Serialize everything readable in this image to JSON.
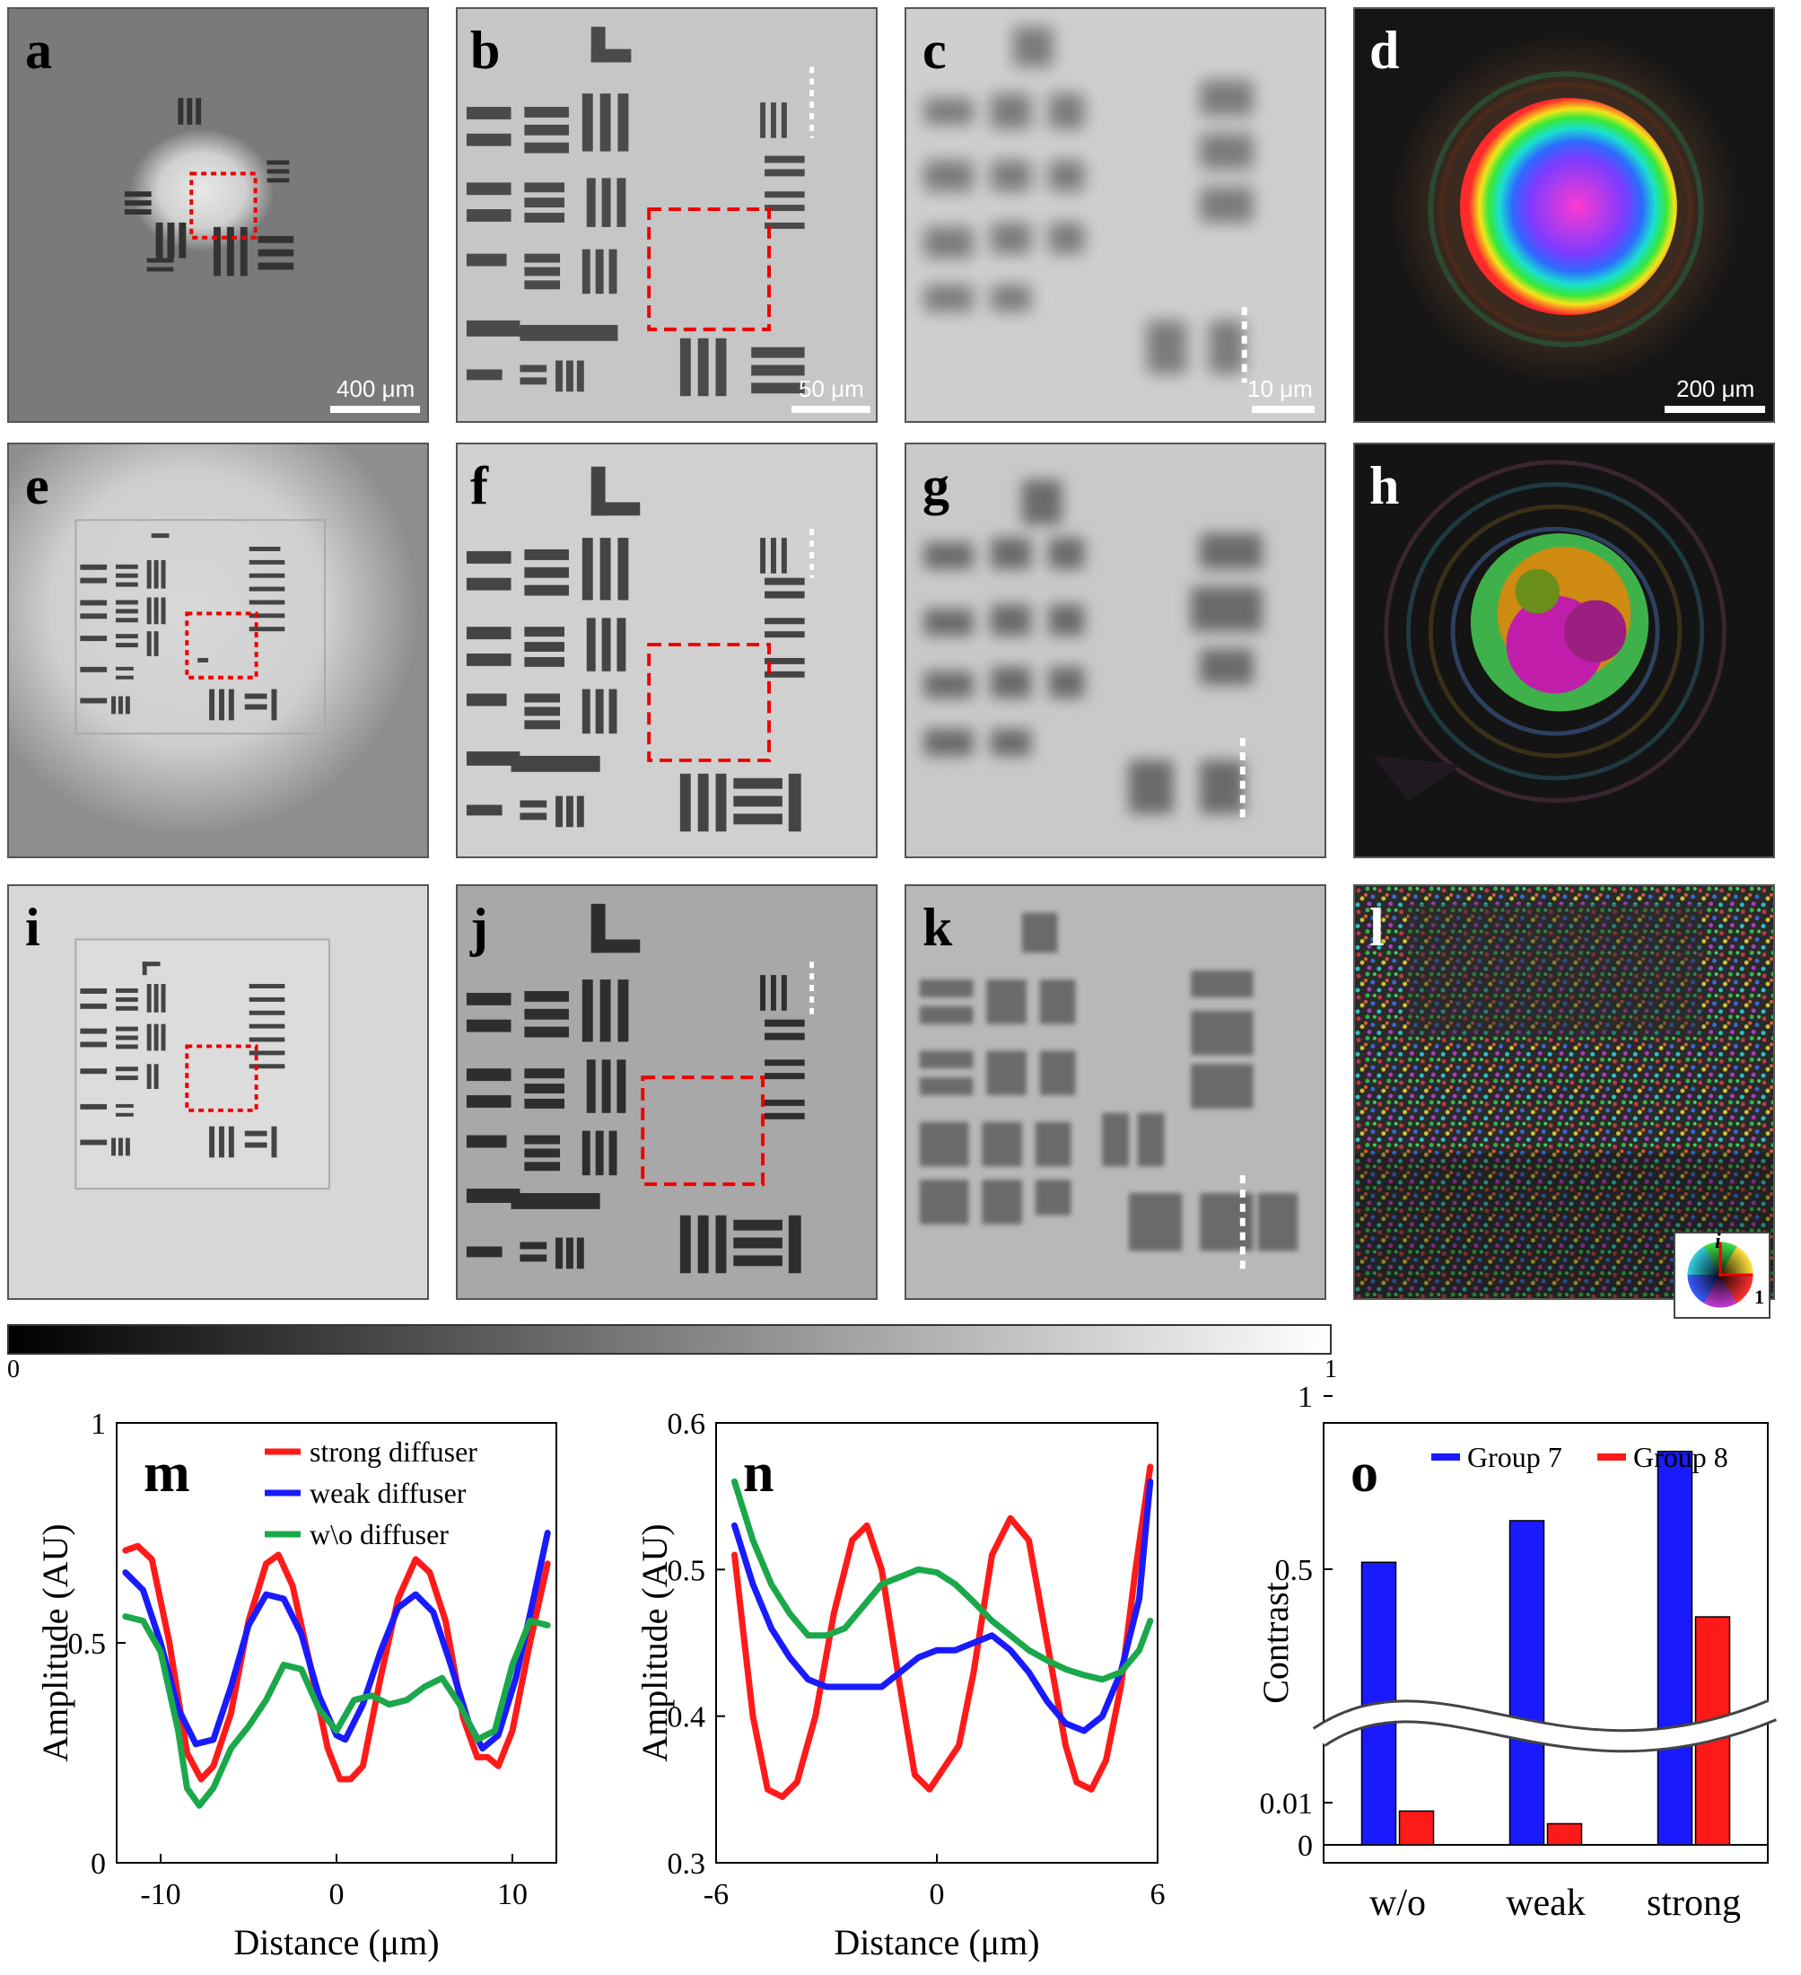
{
  "panels": {
    "a": {
      "label": "a",
      "scalebar": "400 μm"
    },
    "b": {
      "label": "b",
      "scalebar": "50 μm"
    },
    "c": {
      "label": "c",
      "scalebar": "10 μm"
    },
    "d": {
      "label": "d",
      "scalebar": "200 μm"
    },
    "e": {
      "label": "e"
    },
    "f": {
      "label": "f"
    },
    "g": {
      "label": "g"
    },
    "h": {
      "label": "h"
    },
    "i": {
      "label": "i"
    },
    "j": {
      "label": "j"
    },
    "k": {
      "label": "k"
    },
    "l": {
      "label": "l"
    }
  },
  "phase_legend": {
    "imag": "i",
    "real": "1"
  },
  "colorbar": {
    "min": "0",
    "max": "1"
  },
  "chart_data": [
    {
      "id": "m",
      "type": "line",
      "panel_label": "m",
      "xlabel": "Distance (μm)",
      "ylabel": "Amplitude (AU)",
      "xlim": [
        -12.5,
        12.5
      ],
      "ylim": [
        0,
        1
      ],
      "xticks": [
        -10,
        0,
        10
      ],
      "yticks": [
        0,
        0.5,
        1
      ],
      "xtick_labels": [
        "-10",
        "0",
        "10"
      ],
      "ytick_labels": [
        "0",
        "0.5",
        "1"
      ],
      "legend": "top-right",
      "series": [
        {
          "name": "strong diffuser",
          "color": "#ff1a1a",
          "x": [
            -12,
            -11.3,
            -10.5,
            -9.5,
            -8.5,
            -7.7,
            -7,
            -6,
            -5,
            -4,
            -3.3,
            -2.5,
            -1.5,
            -0.5,
            0.2,
            0.8,
            1.5,
            2.5,
            3.5,
            4.5,
            5.3,
            6.2,
            7.2,
            8,
            8.6,
            9.2,
            10,
            11,
            12
          ],
          "y": [
            0.71,
            0.72,
            0.69,
            0.5,
            0.25,
            0.19,
            0.22,
            0.34,
            0.55,
            0.68,
            0.7,
            0.63,
            0.45,
            0.26,
            0.19,
            0.19,
            0.22,
            0.42,
            0.6,
            0.69,
            0.66,
            0.55,
            0.33,
            0.24,
            0.24,
            0.22,
            0.3,
            0.5,
            0.68
          ]
        },
        {
          "name": "weak diffuser",
          "color": "#1a1aff",
          "x": [
            -12,
            -11,
            -10,
            -9,
            -8,
            -7,
            -6,
            -5,
            -4,
            -3,
            -2,
            -1,
            0,
            0.5,
            1.5,
            2.5,
            3.5,
            4.5,
            5.5,
            6.5,
            7.5,
            8.3,
            9.2,
            10.2,
            11.2,
            12
          ],
          "y": [
            0.66,
            0.62,
            0.5,
            0.35,
            0.27,
            0.28,
            0.4,
            0.54,
            0.61,
            0.6,
            0.52,
            0.38,
            0.29,
            0.28,
            0.36,
            0.48,
            0.58,
            0.61,
            0.57,
            0.45,
            0.32,
            0.26,
            0.29,
            0.42,
            0.6,
            0.75
          ]
        },
        {
          "name": "w\\o diffuser",
          "color": "#1aa84a",
          "x": [
            -12,
            -11,
            -10,
            -9,
            -8.5,
            -7.8,
            -7,
            -6,
            -5,
            -4,
            -3,
            -2,
            -1,
            0,
            1,
            2,
            3,
            4,
            5,
            6,
            7,
            8,
            9,
            10,
            11,
            12
          ],
          "y": [
            0.56,
            0.55,
            0.48,
            0.3,
            0.17,
            0.13,
            0.17,
            0.26,
            0.31,
            0.37,
            0.45,
            0.44,
            0.35,
            0.3,
            0.37,
            0.38,
            0.36,
            0.37,
            0.4,
            0.42,
            0.36,
            0.28,
            0.3,
            0.45,
            0.55,
            0.54
          ]
        }
      ]
    },
    {
      "id": "n",
      "type": "line",
      "panel_label": "n",
      "xlabel": "Distance (μm)",
      "ylabel": "Amplitude (AU)",
      "xlim": [
        -6,
        6
      ],
      "ylim": [
        0.3,
        0.6
      ],
      "xticks": [
        -6,
        0,
        6
      ],
      "yticks": [
        0.3,
        0.4,
        0.5,
        0.6
      ],
      "xtick_labels": [
        "-6",
        "0",
        "6"
      ],
      "ytick_labels": [
        "0.3",
        "0.4",
        "0.5",
        "0.6"
      ],
      "series": [
        {
          "name": "",
          "color": "#ff1a1a",
          "x": [
            -5.5,
            -5,
            -4.6,
            -4.2,
            -3.8,
            -3.3,
            -2.8,
            -2.3,
            -1.9,
            -1.5,
            -1,
            -0.6,
            -0.2,
            0.2,
            0.6,
            1,
            1.5,
            2,
            2.5,
            3,
            3.5,
            3.8,
            4.2,
            4.6,
            5,
            5.4,
            5.8
          ],
          "y": [
            0.51,
            0.4,
            0.35,
            0.345,
            0.355,
            0.4,
            0.47,
            0.52,
            0.53,
            0.5,
            0.42,
            0.36,
            0.35,
            0.365,
            0.38,
            0.43,
            0.51,
            0.535,
            0.52,
            0.45,
            0.38,
            0.355,
            0.35,
            0.37,
            0.42,
            0.5,
            0.57
          ]
        },
        {
          "name": "",
          "color": "#1a1aff",
          "x": [
            -5.5,
            -5,
            -4.5,
            -4,
            -3.5,
            -3,
            -2.5,
            -2,
            -1.5,
            -1,
            -0.5,
            0,
            0.5,
            1,
            1.5,
            2,
            2.5,
            3,
            3.5,
            4,
            4.5,
            5,
            5.5,
            5.8
          ],
          "y": [
            0.53,
            0.49,
            0.46,
            0.44,
            0.425,
            0.42,
            0.42,
            0.42,
            0.42,
            0.43,
            0.44,
            0.445,
            0.445,
            0.45,
            0.455,
            0.445,
            0.43,
            0.41,
            0.395,
            0.39,
            0.4,
            0.43,
            0.48,
            0.56
          ]
        },
        {
          "name": "",
          "color": "#1aa84a",
          "x": [
            -5.5,
            -5,
            -4.5,
            -4,
            -3.5,
            -3,
            -2.5,
            -2,
            -1.5,
            -1,
            -0.5,
            0,
            0.5,
            1,
            1.5,
            2,
            2.5,
            3,
            3.5,
            4,
            4.5,
            5,
            5.5,
            5.8
          ],
          "y": [
            0.56,
            0.52,
            0.49,
            0.47,
            0.455,
            0.455,
            0.46,
            0.475,
            0.49,
            0.495,
            0.5,
            0.498,
            0.49,
            0.478,
            0.465,
            0.455,
            0.445,
            0.438,
            0.432,
            0.428,
            0.425,
            0.43,
            0.445,
            0.465
          ]
        }
      ]
    },
    {
      "id": "o",
      "type": "bar",
      "panel_label": "o",
      "ylabel": "Contrast",
      "categories": [
        "w/o",
        "weak",
        "strong"
      ],
      "ytick_labels": [
        "0",
        "0.01",
        "0.5",
        "1"
      ],
      "axis_break": true,
      "legend": "top-right",
      "series": [
        {
          "name": "Group 7",
          "color": "#1a1aff",
          "values": [
            0.52,
            0.64,
            0.84
          ]
        },
        {
          "name": "Group 8",
          "color": "#ff1a1a",
          "values": [
            0.008,
            0.005,
            0.4
          ]
        }
      ]
    }
  ]
}
